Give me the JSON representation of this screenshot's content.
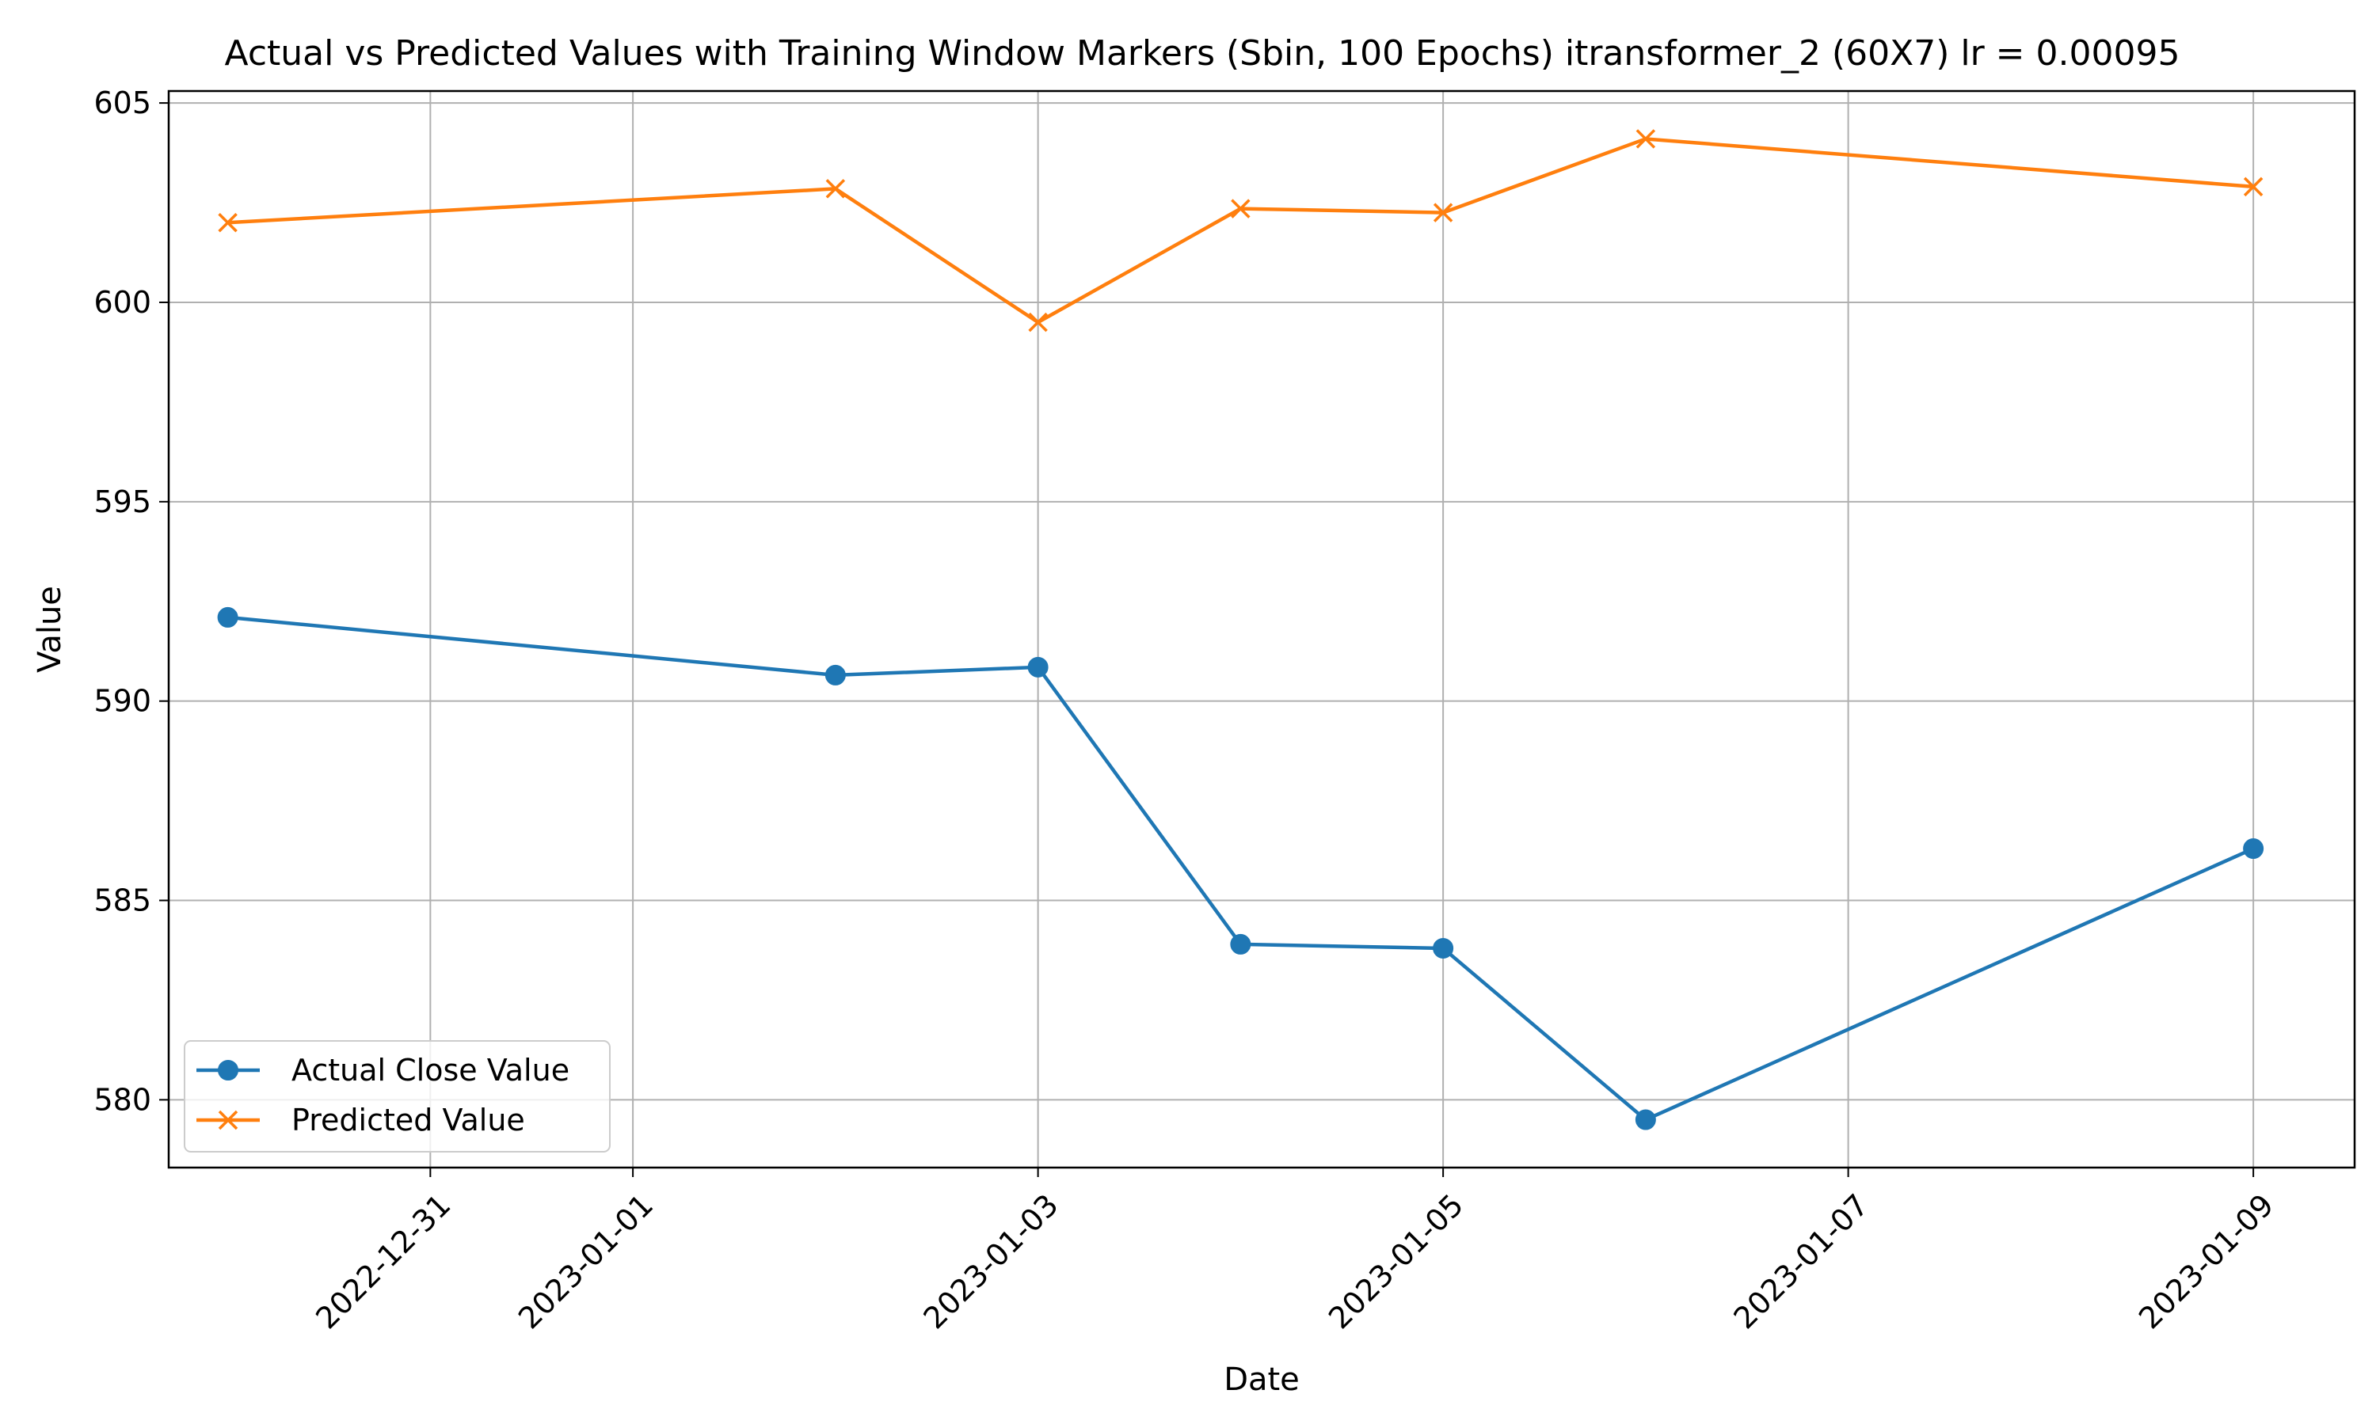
{
  "chart_data": {
    "type": "line",
    "title": "Actual vs Predicted Values with Training Window Markers (Sbin, 100 Epochs) itransformer_2 (60X7) lr = 0.00095",
    "xlabel": "Date",
    "ylabel": "Value",
    "x": [
      "2022-12-30",
      "2023-01-02",
      "2023-01-03",
      "2023-01-04",
      "2023-01-05",
      "2023-01-06",
      "2023-01-09"
    ],
    "xlim": [
      "2022-12-29T17:00",
      "2023-01-09T12:00"
    ],
    "ylim": [
      578.3,
      605.3
    ],
    "xticks": [
      "2022-12-31",
      "2023-01-01",
      "2023-01-03",
      "2023-01-05",
      "2023-01-07",
      "2023-01-09"
    ],
    "yticks": [
      580,
      585,
      590,
      595,
      600,
      605
    ],
    "grid": true,
    "legend_position": "lower-left",
    "series": [
      {
        "name": "Actual Close Value",
        "color": "#1f77b4",
        "marker": "circle",
        "values": [
          592.1,
          590.65,
          590.85,
          583.9,
          583.8,
          579.5,
          586.3
        ]
      },
      {
        "name": "Predicted Value",
        "color": "#ff7f0e",
        "marker": "x",
        "values": [
          602.0,
          602.85,
          599.5,
          602.35,
          602.25,
          604.1,
          602.9
        ]
      }
    ]
  }
}
